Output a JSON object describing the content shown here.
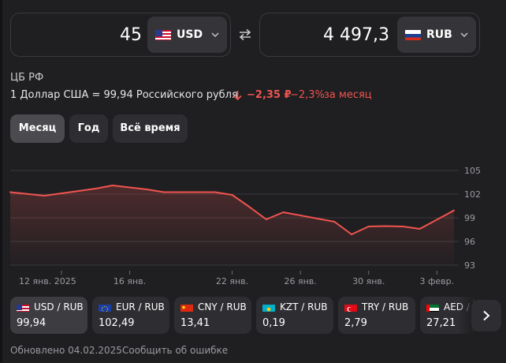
{
  "converter": {
    "from": {
      "amount": "45",
      "currency": "USD"
    },
    "to": {
      "amount": "4 497,3",
      "currency": "RUB"
    }
  },
  "info": {
    "source": "ЦБ РФ",
    "rate_text": "1 Доллар США = 99,94 Российского рубля",
    "change_abs": "−2,35 ₽",
    "change_pct": "−2,3%",
    "change_period": "за месяц"
  },
  "periods": {
    "month": "Месяц",
    "year": "Год",
    "all": "Всё время",
    "active": "month"
  },
  "chart_data": {
    "type": "area",
    "x_tick_labels": [
      "12 янв. 2025",
      "16 янв.",
      "22 янв.",
      "26 янв.",
      "30 янв.",
      "3 февр."
    ],
    "y_ticks": [
      105,
      102,
      99,
      96,
      93
    ],
    "ylim": [
      93,
      105
    ],
    "y_axis_side": "right",
    "grid": true,
    "line_color": "#f0544f",
    "x_labels_are_days_of": "2025-01",
    "points": [
      {
        "x": "9 янв.",
        "y": 102.25
      },
      {
        "x": "11 янв.",
        "y": 101.8
      },
      {
        "x": "14 янв.",
        "y": 102.7
      },
      {
        "x": "15 янв.",
        "y": 103.1
      },
      {
        "x": "17 янв.",
        "y": 102.6
      },
      {
        "x": "18 янв.",
        "y": 102.25
      },
      {
        "x": "21 янв.",
        "y": 102.25
      },
      {
        "x": "22 янв.",
        "y": 101.9
      },
      {
        "x": "23 янв.",
        "y": 100.4
      },
      {
        "x": "24 янв.",
        "y": 98.8
      },
      {
        "x": "25 янв.",
        "y": 99.7
      },
      {
        "x": "28 янв.",
        "y": 98.5
      },
      {
        "x": "29 янв.",
        "y": 96.9
      },
      {
        "x": "30 янв.",
        "y": 97.9
      },
      {
        "x": "31 янв.",
        "y": 97.95
      },
      {
        "x": "1 февр.",
        "y": 97.9
      },
      {
        "x": "2 февр.",
        "y": 97.6
      },
      {
        "x": "4 февр.",
        "y": 99.94
      }
    ]
  },
  "pairs": [
    {
      "name": "USD / RUB",
      "value": "99,94",
      "flag": "us-flag",
      "active": true
    },
    {
      "name": "EUR / RUB",
      "value": "102,49",
      "flag": "eu-flag"
    },
    {
      "name": "CNY / RUB",
      "value": "13,41",
      "flag": "cn-flag"
    },
    {
      "name": "KZT / RUB",
      "value": "0,19",
      "flag": "kz-flag"
    },
    {
      "name": "TRY / RUB",
      "value": "2,79",
      "flag": "tr-flag"
    },
    {
      "name": "AED / R",
      "value": "27,21",
      "flag": "ae-flag"
    }
  ],
  "footer": {
    "updated": "Обновлено 04.02.2025",
    "report": "Сообщить об ошибке"
  },
  "icons": {
    "swap": "swap-arrows-icon",
    "chevron": "chevron-down-icon",
    "next": "chevron-right-icon",
    "change": "arrow-down-icon"
  }
}
